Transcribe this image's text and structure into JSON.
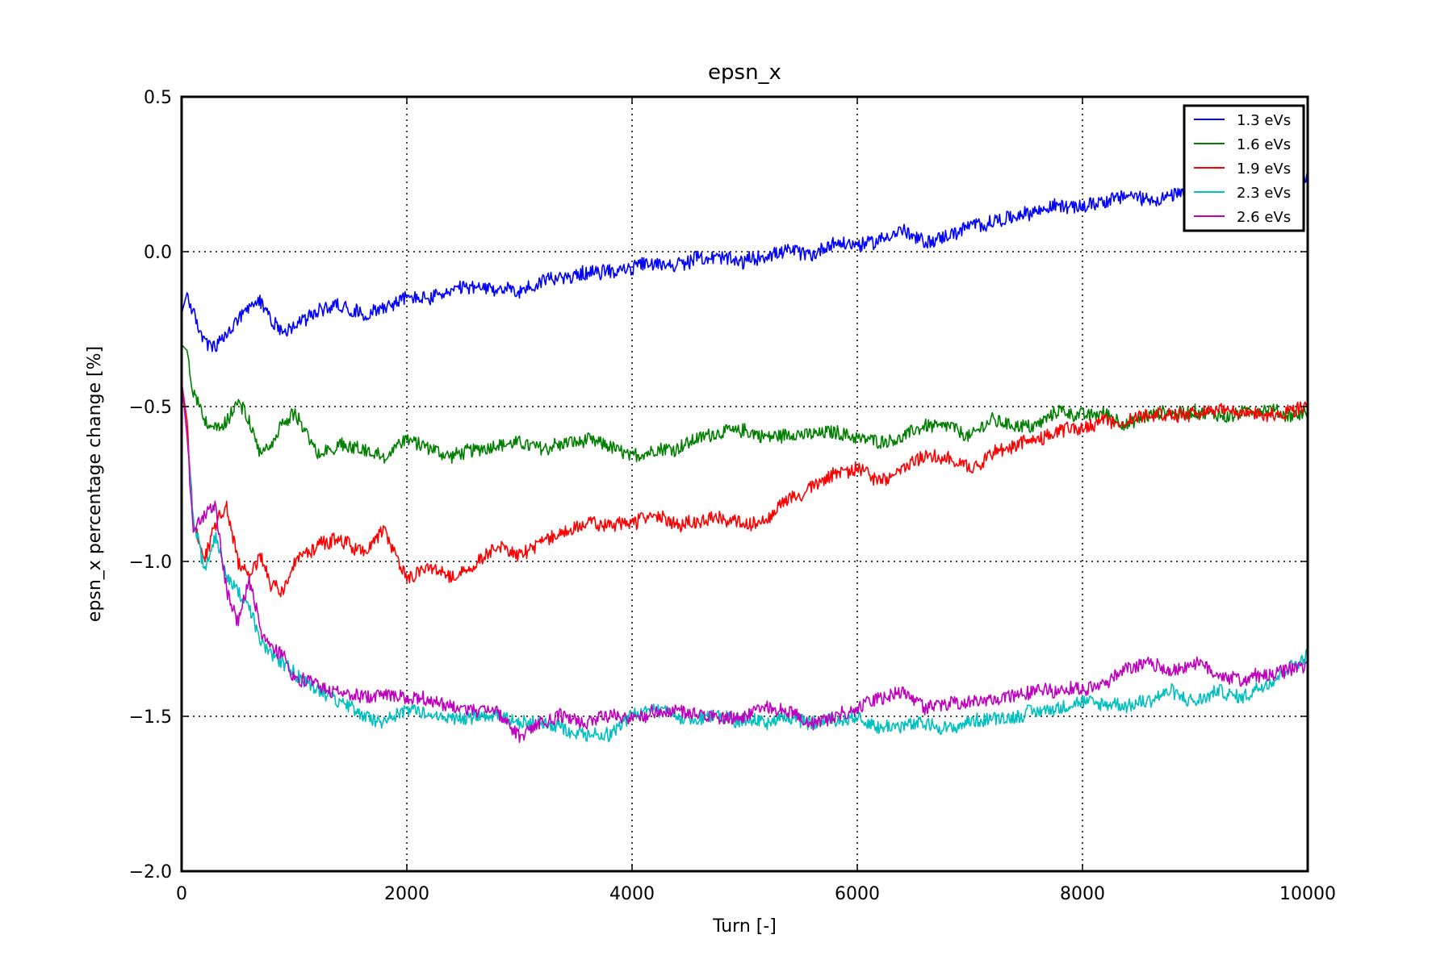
{
  "chart_data": {
    "type": "line",
    "title": "epsn_x",
    "xlabel": "Turn [-]",
    "ylabel": "epsn_x percentage change [%]",
    "xlim": [
      0,
      10000
    ],
    "ylim": [
      -2.0,
      0.5
    ],
    "xticks": [
      0,
      2000,
      4000,
      6000,
      8000,
      10000
    ],
    "xtick_labels": [
      "0",
      "2000",
      "4000",
      "6000",
      "8000",
      "10000"
    ],
    "yticks": [
      -2.0,
      -1.5,
      -1.0,
      -0.5,
      0.0,
      0.5
    ],
    "ytick_labels": [
      "−2.0",
      "−1.5",
      "−1.0",
      "−0.5",
      "0.0",
      "0.5"
    ],
    "grid": true,
    "legend_position": "top-right",
    "x": [
      0,
      50,
      100,
      200,
      300,
      400,
      500,
      600,
      700,
      800,
      900,
      1000,
      1200,
      1400,
      1600,
      1800,
      2000,
      2200,
      2400,
      2600,
      2800,
      3000,
      3200,
      3400,
      3600,
      3800,
      4000,
      4200,
      4400,
      4600,
      4800,
      5000,
      5200,
      5400,
      5600,
      5800,
      6000,
      6200,
      6400,
      6600,
      6800,
      7000,
      7200,
      7400,
      7600,
      7800,
      8000,
      8200,
      8400,
      8600,
      8800,
      9000,
      9200,
      9400,
      9600,
      9800,
      10000
    ],
    "series": [
      {
        "name": "1.3 eVs",
        "color": "#0000ff",
        "noise": 0.022,
        "values": [
          -0.2,
          -0.13,
          -0.2,
          -0.29,
          -0.31,
          -0.27,
          -0.22,
          -0.18,
          -0.16,
          -0.22,
          -0.25,
          -0.24,
          -0.19,
          -0.17,
          -0.2,
          -0.18,
          -0.15,
          -0.15,
          -0.13,
          -0.12,
          -0.12,
          -0.13,
          -0.1,
          -0.08,
          -0.07,
          -0.06,
          -0.05,
          -0.04,
          -0.04,
          -0.02,
          -0.02,
          -0.03,
          -0.01,
          0.0,
          -0.01,
          0.03,
          0.02,
          0.04,
          0.07,
          0.03,
          0.05,
          0.08,
          0.1,
          0.11,
          0.13,
          0.15,
          0.15,
          0.17,
          0.18,
          0.17,
          0.18,
          0.19,
          0.2,
          0.2,
          0.21,
          0.22,
          0.24
        ]
      },
      {
        "name": "1.6 eVs",
        "color": "#007f00",
        "noise": 0.022,
        "values": [
          -0.3,
          -0.32,
          -0.45,
          -0.55,
          -0.58,
          -0.55,
          -0.48,
          -0.55,
          -0.66,
          -0.62,
          -0.56,
          -0.52,
          -0.65,
          -0.62,
          -0.64,
          -0.66,
          -0.6,
          -0.64,
          -0.66,
          -0.64,
          -0.62,
          -0.62,
          -0.63,
          -0.62,
          -0.61,
          -0.63,
          -0.66,
          -0.64,
          -0.63,
          -0.6,
          -0.58,
          -0.58,
          -0.6,
          -0.59,
          -0.59,
          -0.58,
          -0.6,
          -0.61,
          -0.6,
          -0.56,
          -0.56,
          -0.6,
          -0.54,
          -0.56,
          -0.56,
          -0.51,
          -0.53,
          -0.52,
          -0.56,
          -0.53,
          -0.52,
          -0.52,
          -0.53,
          -0.52,
          -0.51,
          -0.53,
          -0.52
        ]
      },
      {
        "name": "1.9 eVs",
        "color": "#ff0000",
        "noise": 0.022,
        "values": [
          -0.42,
          -0.55,
          -0.85,
          -1.0,
          -0.88,
          -0.82,
          -1.0,
          -1.05,
          -0.98,
          -1.08,
          -1.1,
          -1.0,
          -0.95,
          -0.93,
          -0.97,
          -0.9,
          -1.05,
          -1.02,
          -1.05,
          -1.01,
          -0.95,
          -0.98,
          -0.94,
          -0.9,
          -0.88,
          -0.88,
          -0.87,
          -0.85,
          -0.88,
          -0.87,
          -0.86,
          -0.88,
          -0.86,
          -0.8,
          -0.76,
          -0.72,
          -0.7,
          -0.74,
          -0.7,
          -0.66,
          -0.66,
          -0.7,
          -0.65,
          -0.63,
          -0.61,
          -0.58,
          -0.56,
          -0.55,
          -0.54,
          -0.52,
          -0.53,
          -0.52,
          -0.51,
          -0.52,
          -0.53,
          -0.52,
          -0.5
        ]
      },
      {
        "name": "2.3 eVs",
        "color": "#00bfbf",
        "noise": 0.022,
        "values": [
          -0.42,
          -0.6,
          -0.85,
          -1.02,
          -0.92,
          -1.05,
          -1.1,
          -1.15,
          -1.25,
          -1.3,
          -1.33,
          -1.36,
          -1.42,
          -1.45,
          -1.5,
          -1.52,
          -1.48,
          -1.49,
          -1.51,
          -1.5,
          -1.49,
          -1.52,
          -1.52,
          -1.54,
          -1.56,
          -1.56,
          -1.5,
          -1.48,
          -1.5,
          -1.51,
          -1.5,
          -1.51,
          -1.52,
          -1.5,
          -1.52,
          -1.51,
          -1.5,
          -1.54,
          -1.53,
          -1.52,
          -1.54,
          -1.52,
          -1.51,
          -1.5,
          -1.48,
          -1.47,
          -1.46,
          -1.46,
          -1.47,
          -1.44,
          -1.42,
          -1.46,
          -1.42,
          -1.44,
          -1.4,
          -1.35,
          -1.3
        ]
      },
      {
        "name": "2.6 eVs",
        "color": "#bf00bf",
        "noise": 0.022,
        "values": [
          -0.42,
          -0.6,
          -0.9,
          -0.85,
          -0.82,
          -1.1,
          -1.2,
          -1.06,
          -1.22,
          -1.28,
          -1.3,
          -1.38,
          -1.4,
          -1.42,
          -1.44,
          -1.43,
          -1.44,
          -1.45,
          -1.47,
          -1.48,
          -1.49,
          -1.57,
          -1.52,
          -1.5,
          -1.52,
          -1.5,
          -1.5,
          -1.49,
          -1.48,
          -1.5,
          -1.51,
          -1.5,
          -1.47,
          -1.49,
          -1.52,
          -1.5,
          -1.47,
          -1.44,
          -1.42,
          -1.47,
          -1.46,
          -1.45,
          -1.44,
          -1.43,
          -1.42,
          -1.41,
          -1.41,
          -1.4,
          -1.35,
          -1.33,
          -1.35,
          -1.33,
          -1.36,
          -1.38,
          -1.37,
          -1.35,
          -1.33
        ]
      }
    ]
  }
}
